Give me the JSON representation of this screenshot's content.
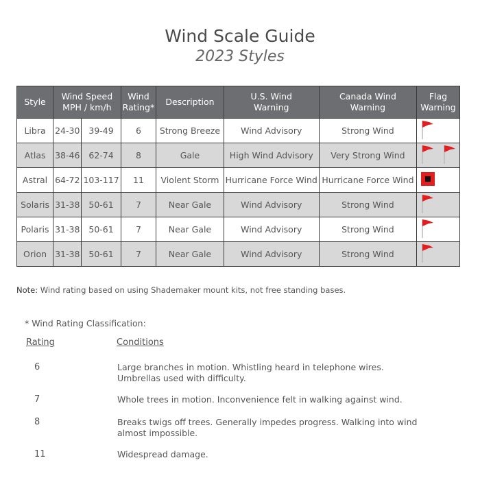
{
  "title": "Wind Scale Guide",
  "subtitle": "2023 Styles",
  "table": {
    "headers": [
      "Style",
      "Wind Speed MPH / km/h",
      "Wind Rating*",
      "Description",
      "U.S. Wind Warning",
      "Canada Wind Warning",
      "Flag Warning"
    ],
    "header_lines": {
      "speed1": "Wind Speed",
      "speed2": "MPH / km/h",
      "rating1": "Wind",
      "rating2": "Rating*",
      "us1": "U.S. Wind",
      "us2": "Warning",
      "ca1": "Canada Wind",
      "ca2": "Warning",
      "flag1": "Flag",
      "flag2": "Warning"
    },
    "rows": [
      {
        "style": "Libra",
        "mph": "24-30",
        "kmh": "39-49",
        "rating": "6",
        "description": "Strong Breeze",
        "us": "Wind Advisory",
        "canada": "Strong Wind",
        "flag": "one-red-pennant"
      },
      {
        "style": "Atlas",
        "mph": "38-46",
        "kmh": "62-74",
        "rating": "8",
        "description": "Gale",
        "us": "High Wind Advisory",
        "canada": "Very Strong Wind",
        "flag": "two-red-pennants"
      },
      {
        "style": "Astral",
        "mph": "64-72",
        "kmh": "103-117",
        "rating": "11",
        "description": "Violent Storm",
        "us": "Hurricane Force Wind",
        "canada": "Hurricane Force Wind",
        "flag": "hurricane-flag"
      },
      {
        "style": "Solaris",
        "mph": "31-38",
        "kmh": "50-61",
        "rating": "7",
        "description": "Near Gale",
        "us": "Wind Advisory",
        "canada": "Strong Wind",
        "flag": "one-red-pennant"
      },
      {
        "style": "Polaris",
        "mph": "31-38",
        "kmh": "50-61",
        "rating": "7",
        "description": "Near Gale",
        "us": "Wind Advisory",
        "canada": "Strong Wind",
        "flag": "one-red-pennant"
      },
      {
        "style": "Orion",
        "mph": "31-38",
        "kmh": "50-61",
        "rating": "7",
        "description": "Near Gale",
        "us": "Wind Advisory",
        "canada": "Strong Wind",
        "flag": "one-red-pennant"
      }
    ]
  },
  "note": {
    "label": "Note:",
    "text": " Wind rating based on using Shademaker mount kits, not free standing bases."
  },
  "classification": {
    "title": "* Wind Rating Classification:",
    "rating_header": "Rating",
    "conditions_header": "Conditions",
    "items": [
      {
        "rating": "6",
        "line1": "Large branches in motion. Whistling heard in telephone wires.",
        "line2": "Umbrellas used with difficulty."
      },
      {
        "rating": "7",
        "line1": "Whole trees in motion. Inconvenience felt in walking against wind.",
        "line2": ""
      },
      {
        "rating": "8",
        "line1": "Breaks twigs off trees. Generally impedes progress. Walking into wind",
        "line2": "almost impossible."
      },
      {
        "rating": "11",
        "line1": "Widespread damage.",
        "line2": ""
      }
    ]
  },
  "colors": {
    "header_bg": "#6d6e71",
    "alt_row": "#d8d8d9",
    "flag_red": "#e02020"
  }
}
